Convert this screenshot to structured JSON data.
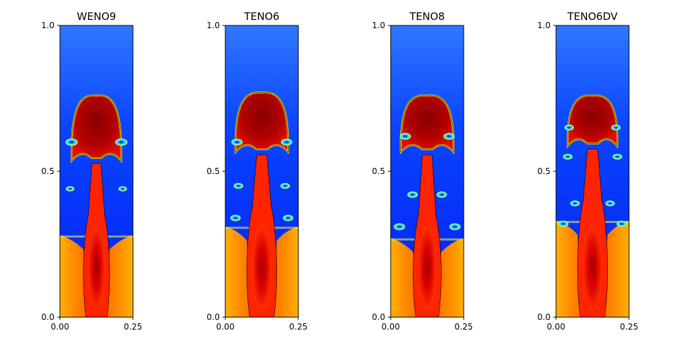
{
  "chart_data": [
    {
      "type": "heatmap",
      "title": "WENO9",
      "xlabel": "",
      "ylabel": "",
      "xlim": [
        0,
        0.25
      ],
      "ylim": [
        0,
        1
      ],
      "xticks": [
        "0.00",
        "0.25"
      ],
      "yticks": [
        "0.0",
        "0.5",
        "1.0"
      ],
      "colormap": "jet",
      "interface_height": 0.28,
      "cap_top": 0.76,
      "cap_half_width": 0.085,
      "cap_bottom": 0.55,
      "stem_half_width": 0.028,
      "stem_min_height": 0.35,
      "roll_ups": [
        {
          "x": 0.035,
          "y": 0.44,
          "r": 0.008
        },
        {
          "x": 0.215,
          "y": 0.44,
          "r": 0.008
        },
        {
          "x": 0.04,
          "y": 0.6,
          "r": 0.012
        },
        {
          "x": 0.21,
          "y": 0.6,
          "r": 0.012
        }
      ]
    },
    {
      "type": "heatmap",
      "title": "TENO6",
      "xlabel": "",
      "ylabel": "",
      "xlim": [
        0,
        0.25
      ],
      "ylim": [
        0,
        1
      ],
      "xticks": [
        "0.00",
        "0.25"
      ],
      "yticks": [
        "0.0",
        "0.5",
        "1.0"
      ],
      "colormap": "jet",
      "interface_height": 0.31,
      "cap_top": 0.77,
      "cap_half_width": 0.09,
      "cap_bottom": 0.58,
      "stem_half_width": 0.032,
      "stem_min_height": 0.38,
      "roll_ups": [
        {
          "x": 0.035,
          "y": 0.34,
          "r": 0.01
        },
        {
          "x": 0.215,
          "y": 0.34,
          "r": 0.01
        },
        {
          "x": 0.045,
          "y": 0.45,
          "r": 0.009
        },
        {
          "x": 0.205,
          "y": 0.45,
          "r": 0.009
        },
        {
          "x": 0.04,
          "y": 0.6,
          "r": 0.011
        },
        {
          "x": 0.21,
          "y": 0.6,
          "r": 0.011
        }
      ]
    },
    {
      "type": "heatmap",
      "title": "TENO8",
      "xlabel": "",
      "ylabel": "",
      "xlim": [
        0,
        0.25
      ],
      "ylim": [
        0,
        1
      ],
      "xticks": [
        "0.00",
        "0.25"
      ],
      "yticks": [
        "0.0",
        "0.5",
        "1.0"
      ],
      "colormap": "jet",
      "interface_height": 0.27,
      "cap_top": 0.76,
      "cap_half_width": 0.09,
      "cap_bottom": 0.58,
      "stem_half_width": 0.03,
      "stem_min_height": 0.35,
      "roll_ups": [
        {
          "x": 0.03,
          "y": 0.31,
          "r": 0.011
        },
        {
          "x": 0.22,
          "y": 0.31,
          "r": 0.011
        },
        {
          "x": 0.075,
          "y": 0.42,
          "r": 0.01
        },
        {
          "x": 0.175,
          "y": 0.42,
          "r": 0.01
        },
        {
          "x": 0.05,
          "y": 0.62,
          "r": 0.011
        },
        {
          "x": 0.2,
          "y": 0.62,
          "r": 0.011
        }
      ]
    },
    {
      "type": "heatmap",
      "title": "TENO6DV",
      "xlabel": "",
      "ylabel": "",
      "xlim": [
        0,
        0.25
      ],
      "ylim": [
        0,
        1
      ],
      "xticks": [
        "0.00",
        "0.25"
      ],
      "yticks": [
        "0.0",
        "0.5",
        "1.0"
      ],
      "colormap": "jet",
      "interface_height": 0.33,
      "cap_top": 0.76,
      "cap_half_width": 0.085,
      "cap_bottom": 0.6,
      "stem_half_width": 0.032,
      "stem_min_height": 0.4,
      "roll_ups": [
        {
          "x": 0.025,
          "y": 0.32,
          "r": 0.01
        },
        {
          "x": 0.225,
          "y": 0.32,
          "r": 0.01
        },
        {
          "x": 0.065,
          "y": 0.39,
          "r": 0.009
        },
        {
          "x": 0.185,
          "y": 0.39,
          "r": 0.009
        },
        {
          "x": 0.04,
          "y": 0.55,
          "r": 0.009
        },
        {
          "x": 0.21,
          "y": 0.55,
          "r": 0.009
        },
        {
          "x": 0.045,
          "y": 0.65,
          "r": 0.009
        },
        {
          "x": 0.205,
          "y": 0.65,
          "r": 0.009
        }
      ]
    }
  ]
}
